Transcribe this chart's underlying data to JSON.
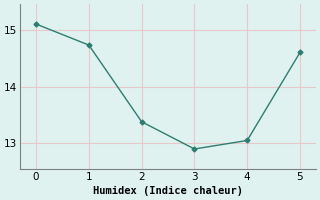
{
  "x": [
    0,
    1,
    2,
    3,
    4,
    5
  ],
  "y": [
    15.1,
    14.73,
    13.38,
    12.9,
    13.05,
    14.6
  ],
  "line_color": "#2e7d70",
  "marker": "D",
  "marker_size": 2.5,
  "xlabel": "Humidex (Indice chaleur)",
  "xlim": [
    -0.3,
    5.3
  ],
  "ylim": [
    12.55,
    15.45
  ],
  "yticks": [
    13,
    14,
    15
  ],
  "xticks": [
    0,
    1,
    2,
    3,
    4,
    5
  ],
  "bg_color": "#dff2f0",
  "grid_color": "#e8c8c8",
  "label_fontsize": 7.5,
  "tick_fontsize": 7.5,
  "spine_color": "#808080"
}
